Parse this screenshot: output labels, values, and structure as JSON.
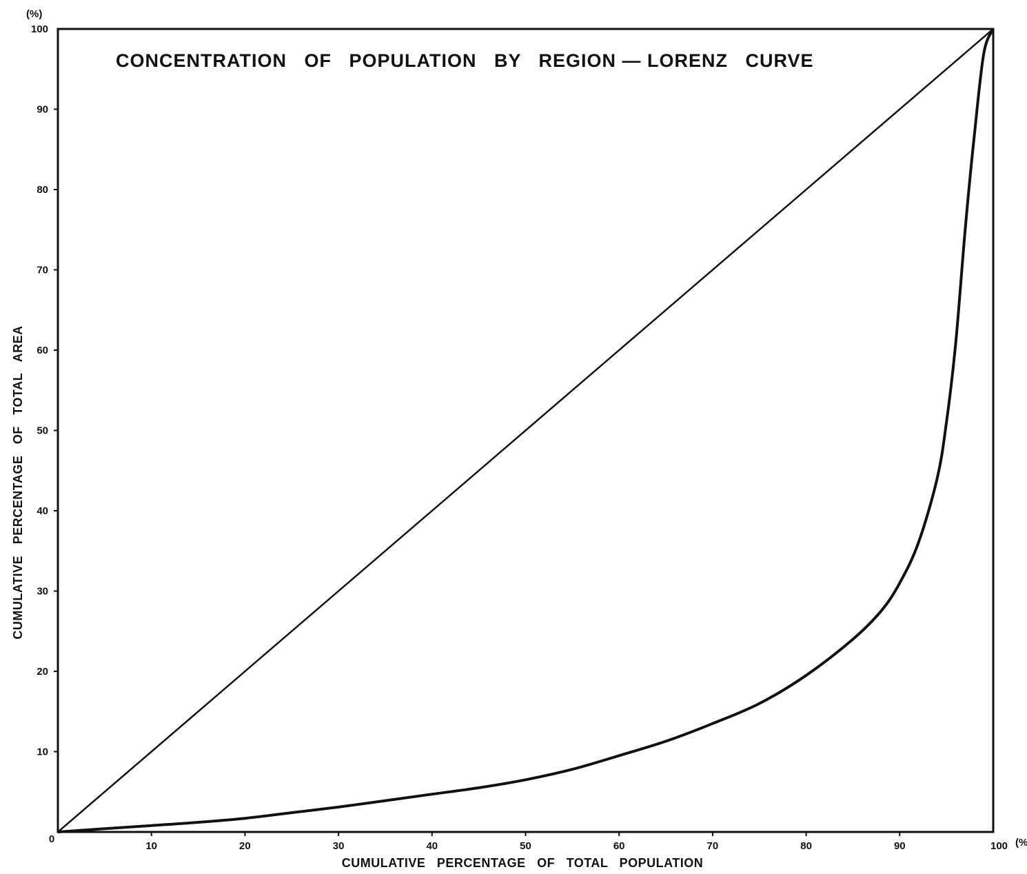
{
  "chart_data": {
    "type": "line",
    "title": "CONCENTRATION   OF   POPULATION   BY   REGION — LORENZ   CURVE",
    "xlabel": "CUMULATIVE   PERCENTAGE   OF   TOTAL   POPULATION",
    "ylabel": "CUMULATIVE   PERCENTAGE   OF   TOTAL   AREA",
    "x_unit": "(%)",
    "y_unit": "(%)",
    "xlim": [
      0,
      100
    ],
    "ylim": [
      0,
      100
    ],
    "x_ticks": [
      0,
      10,
      20,
      30,
      40,
      50,
      60,
      70,
      80,
      90,
      100
    ],
    "x_tick_labels": [
      "0",
      "10",
      "20",
      "30",
      "40",
      "50",
      "60",
      "70",
      "80",
      "90",
      "100"
    ],
    "y_ticks": [
      10,
      20,
      30,
      40,
      50,
      60,
      70,
      80,
      90,
      100
    ],
    "y_tick_labels": [
      "10",
      "20",
      "30",
      "40",
      "50",
      "60",
      "70",
      "80",
      "90",
      "100"
    ],
    "grid": false,
    "series": [
      {
        "x": [
          0,
          100
        ],
        "y": [
          0,
          100
        ]
      },
      {
        "x": [
          0,
          5,
          10,
          15,
          20,
          25,
          30,
          35,
          40,
          45,
          50,
          55,
          60,
          65,
          70,
          75,
          80,
          85,
          88,
          90,
          92,
          94,
          95,
          96,
          97,
          98,
          99,
          100
        ],
        "y": [
          0,
          0.4,
          0.8,
          1.2,
          1.7,
          2.4,
          3.1,
          3.9,
          4.7,
          5.5,
          6.5,
          7.8,
          9.5,
          11.3,
          13.5,
          16,
          19.5,
          24,
          27.5,
          31,
          36,
          44,
          51,
          61,
          75,
          87,
          97,
          100
        ]
      }
    ]
  },
  "icons": {
    "frame": "plot-frame"
  }
}
